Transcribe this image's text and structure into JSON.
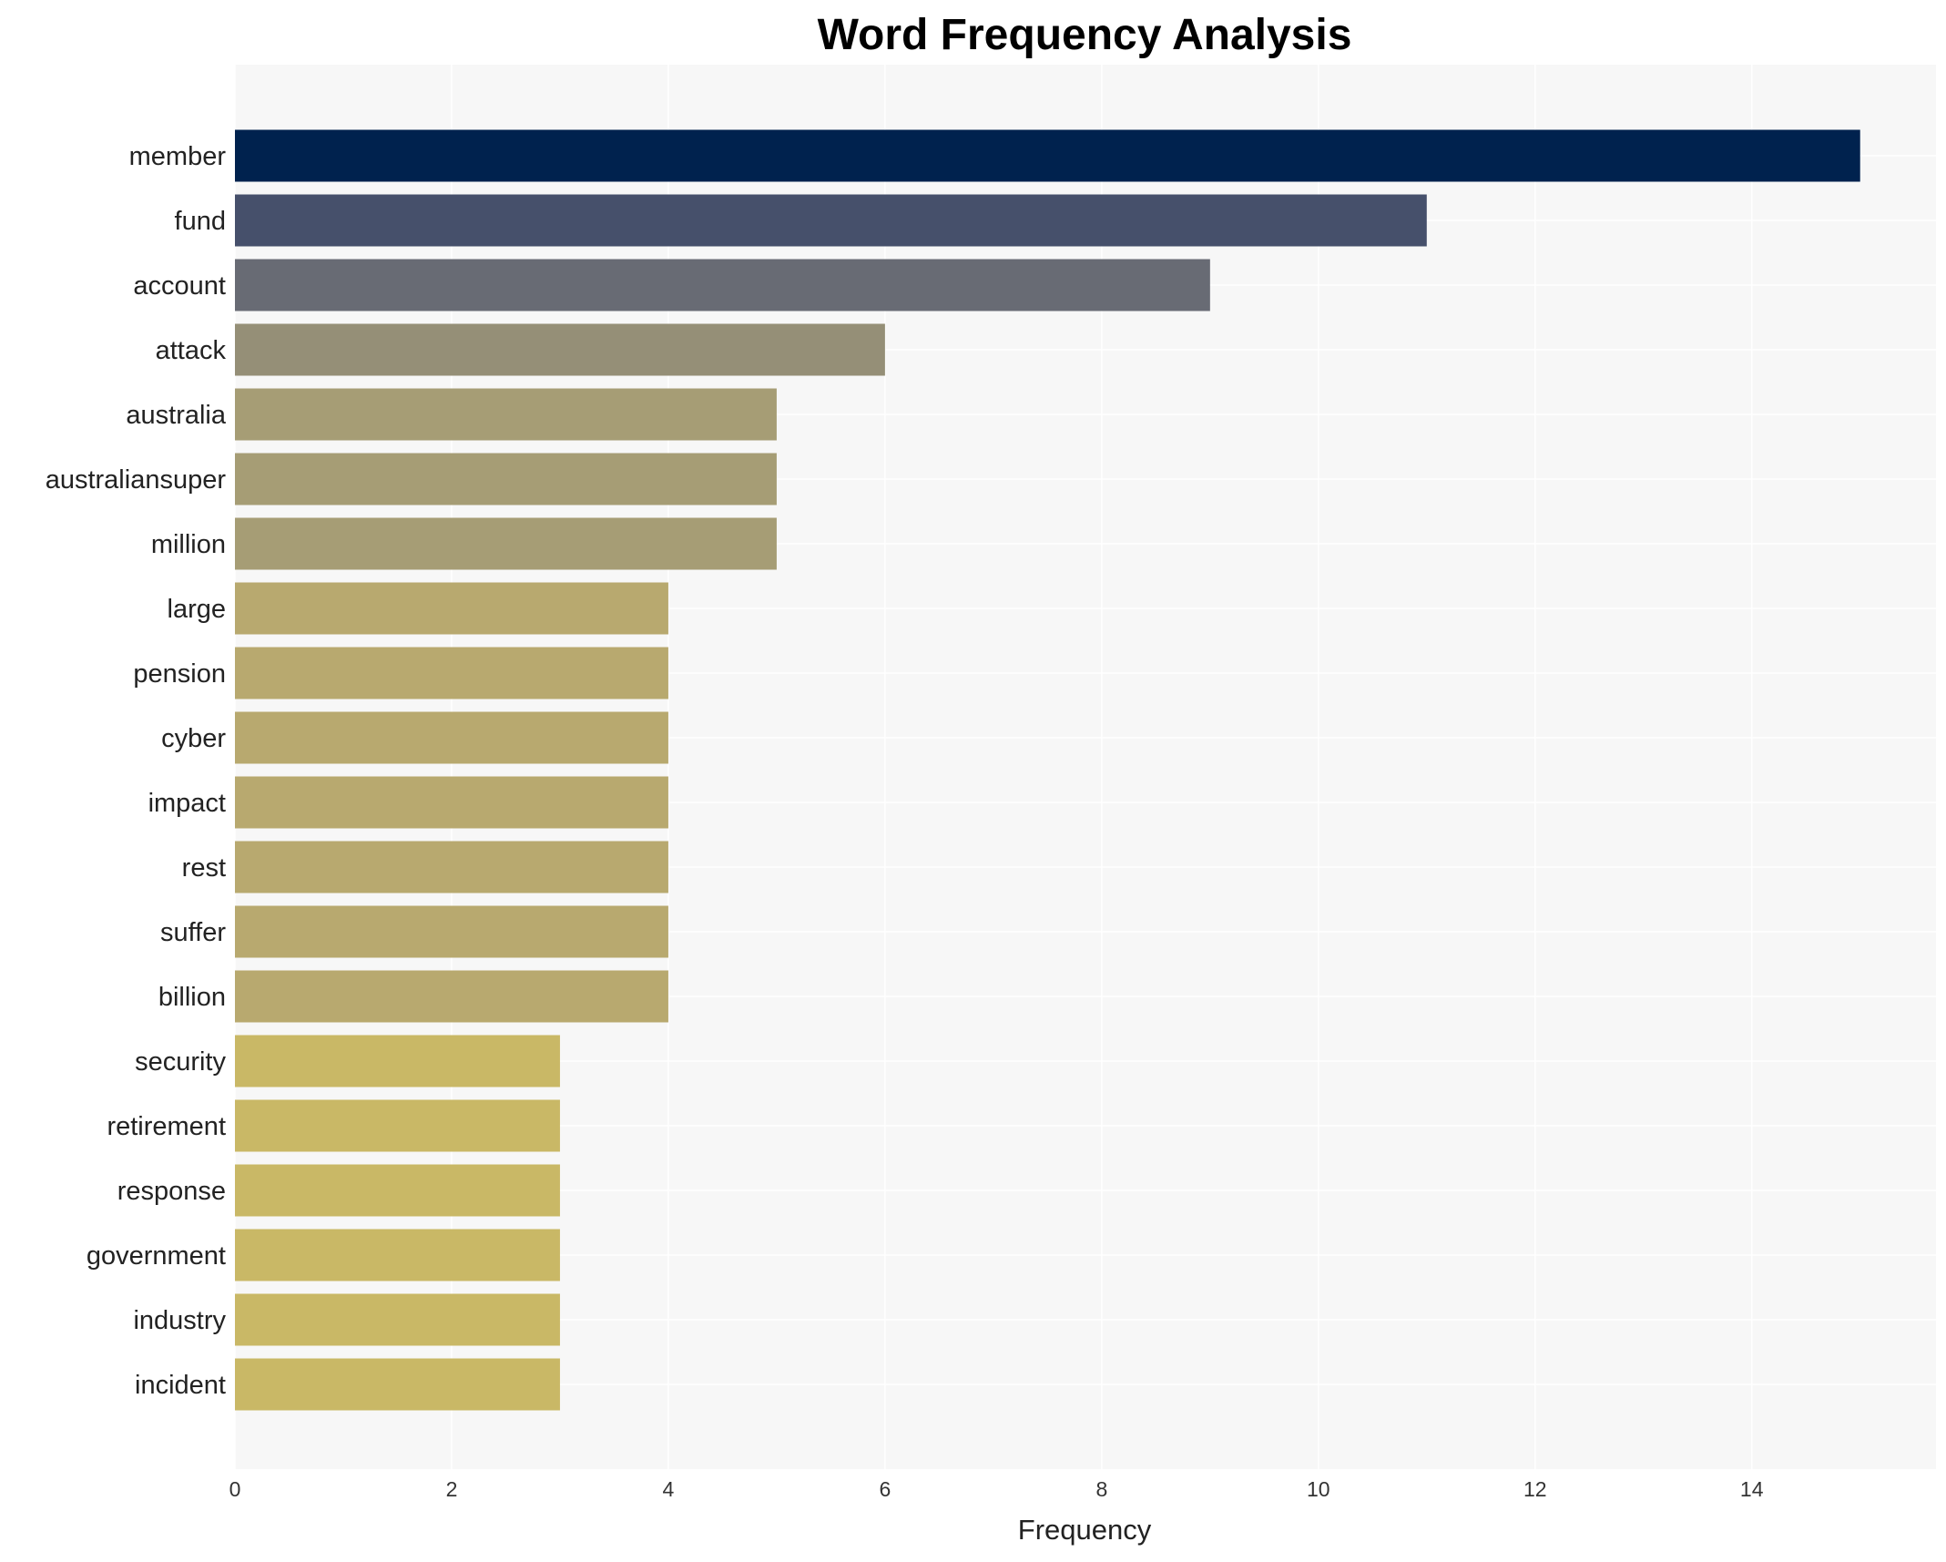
{
  "chart_data": {
    "type": "bar",
    "orientation": "horizontal",
    "title": "Word Frequency Analysis",
    "xlabel": "Frequency",
    "ylabel": "",
    "xlim": [
      0,
      15.7
    ],
    "xticks": [
      0,
      2,
      4,
      6,
      8,
      10,
      12,
      14
    ],
    "grid": true,
    "categories": [
      "member",
      "fund",
      "account",
      "attack",
      "australia",
      "australiansuper",
      "million",
      "large",
      "pension",
      "cyber",
      "impact",
      "rest",
      "suffer",
      "billion",
      "security",
      "retirement",
      "response",
      "government",
      "industry",
      "incident"
    ],
    "values": [
      15,
      11,
      9,
      6,
      5,
      5,
      5,
      4,
      4,
      4,
      4,
      4,
      4,
      4,
      3,
      3,
      3,
      3,
      3,
      3
    ],
    "colors": [
      "#00224e",
      "#46506b",
      "#686b74",
      "#958f77",
      "#a69d75",
      "#a69d75",
      "#a69d75",
      "#b8a96f",
      "#b8a96f",
      "#b8a96f",
      "#b8a96f",
      "#b8a96f",
      "#b8a96f",
      "#b8a96f",
      "#c9b866",
      "#c9b866",
      "#c9b866",
      "#c9b866",
      "#c9b866",
      "#c9b866"
    ],
    "background": "#f7f7f7"
  }
}
